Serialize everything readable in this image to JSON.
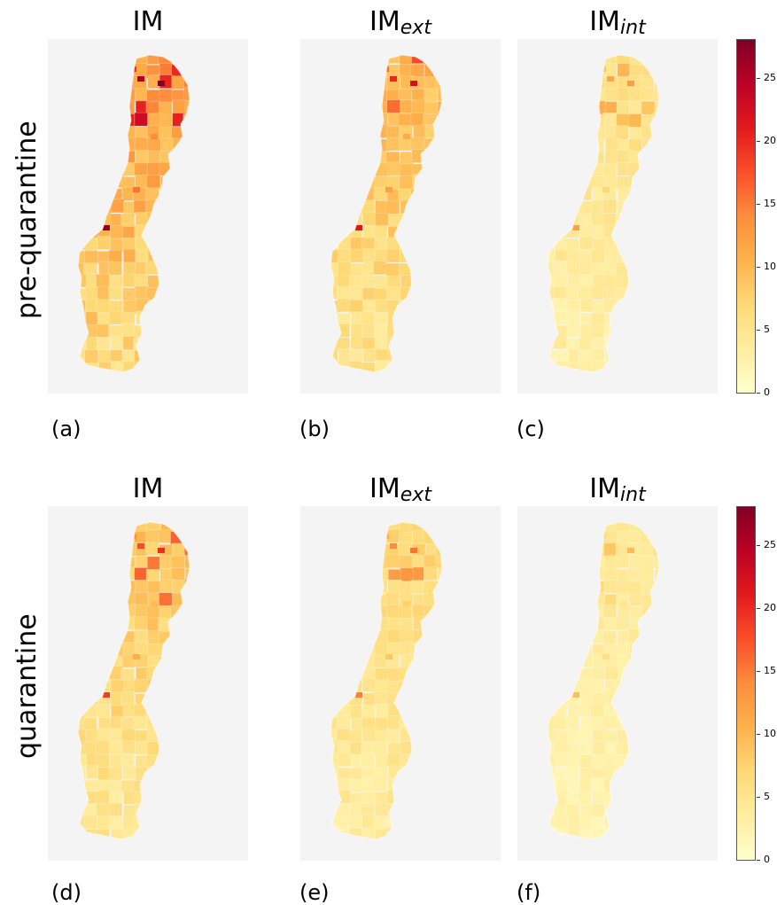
{
  "row_labels": [
    "pre-quarantine",
    "quarantine"
  ],
  "panels": [
    {
      "title_main": "IM",
      "title_sub": "",
      "label": "(a)",
      "intensity": 1.0
    },
    {
      "title_main": "IM",
      "title_sub": "ext",
      "label": "(b)",
      "intensity": 0.8
    },
    {
      "title_main": "IM",
      "title_sub": "int",
      "label": "(c)",
      "intensity": 0.45
    },
    {
      "title_main": "IM",
      "title_sub": "",
      "label": "(d)",
      "intensity": 0.7
    },
    {
      "title_main": "IM",
      "title_sub": "ext",
      "label": "(e)",
      "intensity": 0.55
    },
    {
      "title_main": "IM",
      "title_sub": "int",
      "label": "(f)",
      "intensity": 0.35
    }
  ],
  "colorbar": {
    "min": 0,
    "max": 28,
    "ticks": [
      "0",
      "5",
      "10",
      "15",
      "20",
      "25"
    ],
    "colormap": [
      "#ffffcc",
      "#ffeda0",
      "#fed976",
      "#feb24c",
      "#fd8d3c",
      "#fc4e2a",
      "#e31a1c",
      "#bd0026",
      "#800026"
    ]
  },
  "map_background": "#f4f4f4"
}
